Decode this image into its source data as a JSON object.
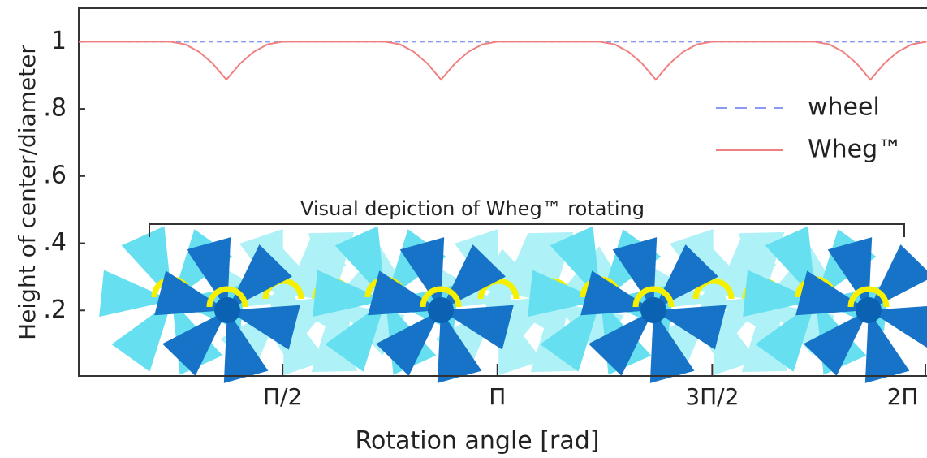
{
  "chart_data": {
    "type": "line",
    "x_label": "Rotation angle [rad]",
    "y_label": "Height of center/diameter",
    "annotation": "Visual depiction of Wheg™ rotating",
    "x": [
      0.08,
      0.75,
      0.86,
      0.96,
      1.06,
      1.16,
      1.26,
      1.36,
      1.46,
      1.57,
      2.32,
      2.43,
      2.53,
      2.63,
      2.73,
      2.83,
      2.93,
      3.03,
      3.14,
      3.89,
      4.0,
      4.1,
      4.2,
      4.3,
      4.4,
      4.5,
      4.6,
      4.71,
      5.46,
      5.57,
      5.67,
      5.77,
      5.87,
      5.97,
      6.07,
      6.17,
      6.28
    ],
    "series": [
      {
        "name": "wheel",
        "color": "#8a9af0",
        "dashed": true,
        "values": [
          1,
          1,
          1,
          1,
          1,
          1,
          1,
          1,
          1,
          1,
          1,
          1,
          1,
          1,
          1,
          1,
          1,
          1,
          1,
          1,
          1,
          1,
          1,
          1,
          1,
          1,
          1,
          1,
          1,
          1,
          1,
          1,
          1,
          1,
          1,
          1,
          1
        ]
      },
      {
        "name": "Wheg™",
        "color": "#f07f7f",
        "dashed": false,
        "values": [
          1,
          1,
          0.992,
          0.97,
          0.935,
          0.887,
          0.935,
          0.97,
          0.992,
          1,
          1,
          0.992,
          0.97,
          0.935,
          0.887,
          0.935,
          0.97,
          0.992,
          1,
          1,
          0.992,
          0.97,
          0.935,
          0.887,
          0.935,
          0.97,
          0.992,
          1,
          1,
          0.992,
          0.97,
          0.935,
          0.887,
          0.935,
          0.97,
          0.992,
          1
        ]
      }
    ],
    "xlim": [
      0.08,
      6.2832
    ],
    "ylim": [
      0,
      1.1
    ],
    "xticks": [
      {
        "value": 1.5708,
        "label": "Π/2"
      },
      {
        "value": 3.1416,
        "label": "Π"
      },
      {
        "value": 4.7124,
        "label": "3Π/2"
      },
      {
        "value": 6.2832,
        "label": "2Π"
      }
    ],
    "yticks": [
      {
        "value": 0.2,
        "label": ".2"
      },
      {
        "value": 0.4,
        "label": ".4"
      },
      {
        "value": 0.6,
        "label": ".6"
      },
      {
        "value": 0.8,
        "label": ".8"
      },
      1
    ],
    "legend": "right"
  }
}
